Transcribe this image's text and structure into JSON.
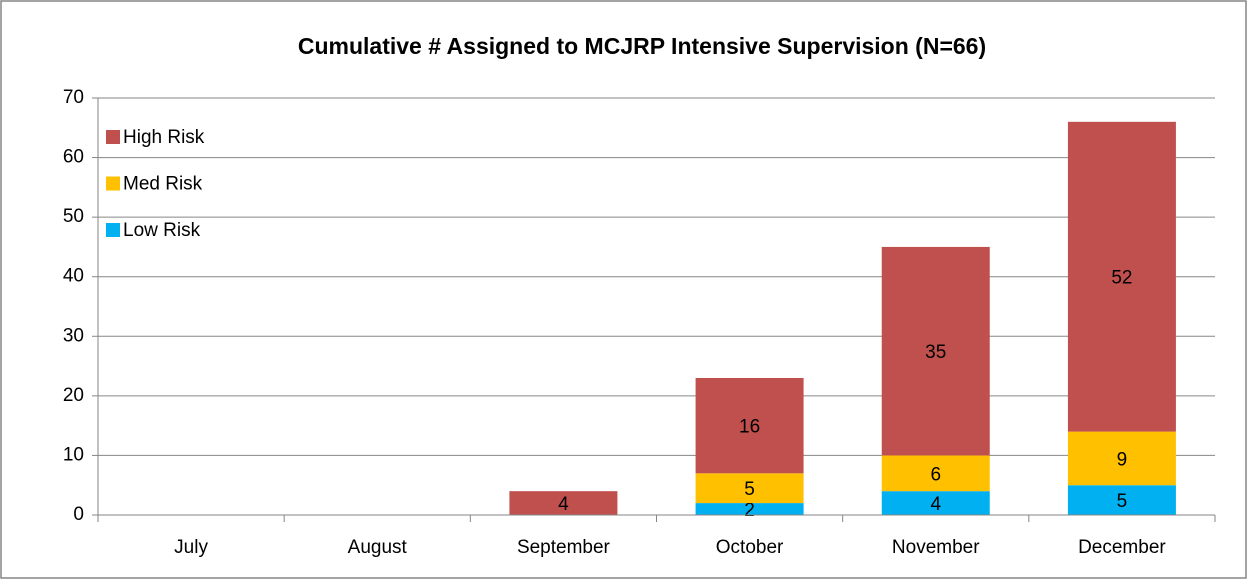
{
  "chart_data": {
    "type": "stacked_bar",
    "title": "Cumulative # Assigned to MCJRP Intensive Supervision (N=66)",
    "categories": [
      "July",
      "August",
      "September",
      "October",
      "November",
      "December"
    ],
    "series": [
      {
        "name": "Low Risk",
        "color": "#00b0f0",
        "values": [
          0,
          0,
          0,
          2,
          4,
          5
        ]
      },
      {
        "name": "Med Risk",
        "color": "#ffc000",
        "values": [
          0,
          0,
          0,
          5,
          6,
          9
        ]
      },
      {
        "name": "High Risk",
        "color": "#c0504d",
        "values": [
          0,
          0,
          4,
          16,
          35,
          52
        ]
      }
    ],
    "ylim": [
      0,
      70
    ],
    "yticks": [
      0,
      10,
      20,
      30,
      40,
      50,
      60,
      70
    ],
    "grid": true,
    "legend": "upper left"
  }
}
